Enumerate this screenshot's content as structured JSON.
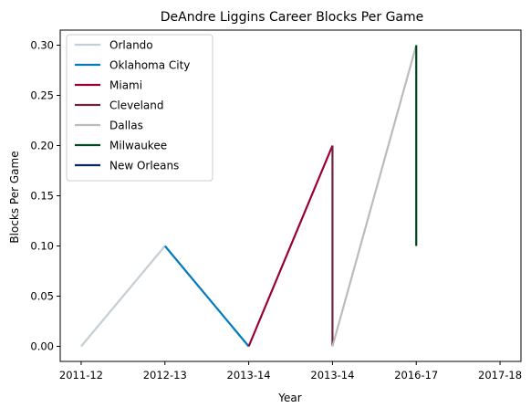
{
  "chart_data": {
    "type": "line",
    "title": "DeAndre Liggins Career Blocks Per Game",
    "xlabel": "Year",
    "ylabel": "Blocks Per Game",
    "x_tick_labels": [
      "2011-12",
      "2012-13",
      "2013-14",
      "2013-14",
      "2016-17",
      "2017-18"
    ],
    "x_range": [
      -0.25,
      5.25
    ],
    "ylim": [
      -0.015,
      0.315
    ],
    "y_ticks": [
      0.0,
      0.05,
      0.1,
      0.15,
      0.2,
      0.25,
      0.3
    ],
    "y_tick_labels": [
      "0.00",
      "0.05",
      "0.10",
      "0.15",
      "0.20",
      "0.25",
      "0.30"
    ],
    "grid": false,
    "legend_position": "top-left",
    "series": [
      {
        "name": "Orlando",
        "color": "#c4ced4",
        "points": [
          [
            0,
            0.0
          ],
          [
            1,
            0.1
          ]
        ]
      },
      {
        "name": "Oklahoma City",
        "color": "#007ac1",
        "points": [
          [
            1,
            0.1
          ],
          [
            2,
            0.0
          ]
        ]
      },
      {
        "name": "Miami",
        "color": "#98002e",
        "points": [
          [
            2,
            0.0
          ],
          [
            3,
            0.2
          ]
        ]
      },
      {
        "name": "Cleveland",
        "color": "#6f263d",
        "points": [
          [
            3,
            0.2
          ],
          [
            3,
            0.0
          ]
        ]
      },
      {
        "name": "Dallas",
        "color": "#bbbbbb",
        "points": [
          [
            3,
            0.0
          ],
          [
            4,
            0.3
          ]
        ]
      },
      {
        "name": "Milwaukee",
        "color": "#00471b",
        "points": [
          [
            4,
            0.3
          ],
          [
            4,
            0.1
          ]
        ]
      },
      {
        "name": "New Orleans",
        "color": "#002b5c",
        "points": []
      }
    ]
  }
}
